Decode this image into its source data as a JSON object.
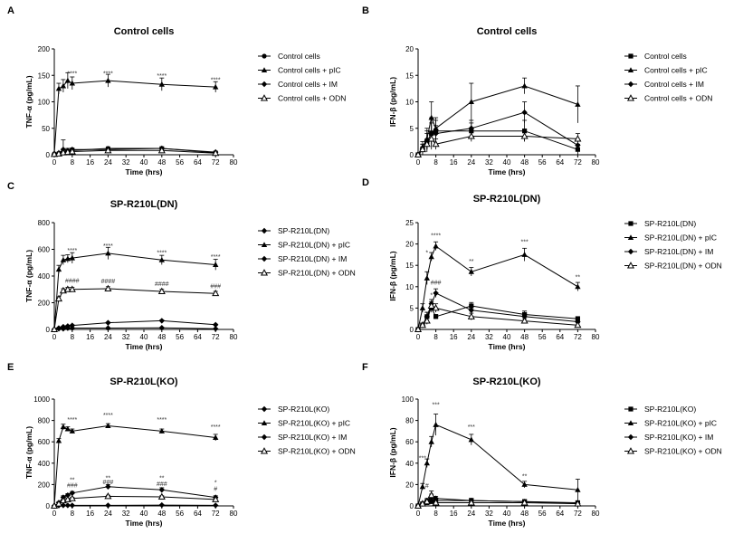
{
  "chart_data": [
    {
      "panel": "A",
      "title": "Control cells",
      "type": "line",
      "xlabel": "Time (hrs)",
      "ylabel": "TNF-α (pg/mL)",
      "xlim": [
        0,
        80
      ],
      "ylim": [
        0,
        200
      ],
      "xticks": [
        0,
        8,
        16,
        24,
        32,
        40,
        48,
        56,
        64,
        72,
        80
      ],
      "yticks": [
        0,
        50,
        100,
        150,
        200
      ],
      "series": [
        {
          "name": "Control cells",
          "marker": "circle",
          "x": [
            0,
            2,
            4,
            6,
            8,
            24,
            48,
            72
          ],
          "y": [
            2,
            3,
            4,
            6,
            8,
            12,
            12,
            4
          ],
          "err": [
            0,
            1,
            2,
            2,
            3,
            3,
            3,
            2
          ]
        },
        {
          "name": "Control cells + pIC",
          "marker": "triangle",
          "x": [
            0,
            2,
            4,
            6,
            8,
            24,
            48,
            72
          ],
          "y": [
            2,
            125,
            130,
            140,
            135,
            140,
            133,
            128
          ],
          "err": [
            0,
            10,
            12,
            15,
            12,
            12,
            12,
            10
          ]
        },
        {
          "name": "Control cells + IM",
          "marker": "diamond",
          "x": [
            0,
            2,
            4,
            6,
            8,
            24,
            48,
            72
          ],
          "y": [
            1,
            3,
            10,
            8,
            10,
            10,
            12,
            5
          ],
          "err": [
            0,
            2,
            18,
            4,
            3,
            3,
            3,
            2
          ]
        },
        {
          "name": "Control cells + ODN",
          "marker": "open-triangle",
          "x": [
            0,
            2,
            4,
            6,
            8,
            24,
            48,
            72
          ],
          "y": [
            1,
            2,
            4,
            5,
            6,
            8,
            8,
            3
          ],
          "err": [
            0,
            1,
            2,
            2,
            2,
            2,
            2,
            2
          ]
        }
      ],
      "annotations": [
        {
          "x": 8,
          "y": 150,
          "text": "****"
        },
        {
          "x": 24,
          "y": 150,
          "text": "****"
        },
        {
          "x": 48,
          "y": 145,
          "text": "****"
        },
        {
          "x": 72,
          "y": 138,
          "text": "****"
        }
      ]
    },
    {
      "panel": "B",
      "title": "Control cells",
      "type": "line",
      "xlabel": "Time (hrs)",
      "ylabel": "IFN-β (pg/mL)",
      "xlim": [
        0,
        80
      ],
      "ylim": [
        0,
        20
      ],
      "xticks": [
        0,
        8,
        16,
        24,
        32,
        40,
        48,
        56,
        64,
        72,
        80
      ],
      "yticks": [
        0,
        5,
        10,
        15,
        20
      ],
      "series": [
        {
          "name": "Control cells",
          "marker": "square",
          "x": [
            0,
            2,
            4,
            6,
            8,
            24,
            48,
            72
          ],
          "y": [
            0,
            1,
            2.5,
            4,
            4.5,
            4.5,
            4.5,
            1
          ],
          "err": [
            0,
            1,
            2,
            3,
            2,
            1.5,
            2,
            1
          ]
        },
        {
          "name": "Control cells + pIC",
          "marker": "triangle",
          "x": [
            0,
            2,
            4,
            6,
            8,
            24,
            48,
            72
          ],
          "y": [
            0,
            1.5,
            3,
            7,
            5,
            10,
            13,
            9.5
          ],
          "err": [
            0,
            1,
            2,
            3,
            2,
            3.5,
            1.5,
            3.5
          ]
        },
        {
          "name": "Control cells + IM",
          "marker": "diamond",
          "x": [
            0,
            2,
            4,
            6,
            8,
            24,
            48,
            72
          ],
          "y": [
            0,
            1,
            2.5,
            4,
            4,
            5,
            8,
            1.8
          ],
          "err": [
            0,
            1,
            1.5,
            2,
            1.5,
            1.5,
            2,
            1
          ]
        },
        {
          "name": "Control cells + ODN",
          "marker": "open-triangle",
          "x": [
            0,
            2,
            4,
            6,
            8,
            24,
            48,
            72
          ],
          "y": [
            0,
            1,
            2,
            3,
            2,
            3.5,
            3.5,
            3
          ],
          "err": [
            0,
            0.5,
            1,
            1.5,
            1,
            1,
            1,
            1
          ]
        }
      ]
    },
    {
      "panel": "C",
      "title": "SP-R210L(DN)",
      "type": "line",
      "xlabel": "Time (hrs)",
      "ylabel": "TNF-α (pg/mL)",
      "xlim": [
        0,
        80
      ],
      "ylim": [
        0,
        800
      ],
      "xticks": [
        0,
        8,
        16,
        24,
        32,
        40,
        48,
        56,
        64,
        72,
        80
      ],
      "yticks": [
        0,
        200,
        400,
        600,
        800
      ],
      "series": [
        {
          "name": "SP-R210L(DN)",
          "marker": "diamond",
          "x": [
            0,
            2,
            4,
            6,
            8,
            24,
            48,
            72
          ],
          "y": [
            0,
            5,
            5,
            10,
            10,
            10,
            12,
            5
          ],
          "err": [
            0,
            2,
            2,
            3,
            3,
            3,
            3,
            2
          ]
        },
        {
          "name": "SP-R210L(DN) + pIC",
          "marker": "triangle",
          "x": [
            0,
            2,
            4,
            6,
            8,
            24,
            48,
            72
          ],
          "y": [
            0,
            450,
            520,
            530,
            535,
            570,
            520,
            485
          ],
          "err": [
            0,
            30,
            35,
            30,
            40,
            45,
            35,
            40
          ]
        },
        {
          "name": "SP-R210L(DN) + IM",
          "marker": "diamond",
          "x": [
            0,
            2,
            4,
            6,
            8,
            24,
            48,
            72
          ],
          "y": [
            0,
            10,
            20,
            25,
            30,
            50,
            65,
            35
          ],
          "err": [
            0,
            3,
            4,
            5,
            5,
            5,
            6,
            5
          ]
        },
        {
          "name": "SP-R210L(DN) + ODN",
          "marker": "open-triangle",
          "x": [
            0,
            2,
            4,
            6,
            8,
            24,
            48,
            72
          ],
          "y": [
            0,
            230,
            290,
            300,
            300,
            305,
            285,
            270
          ],
          "err": [
            0,
            15,
            15,
            15,
            15,
            15,
            15,
            15
          ]
        }
      ],
      "annotations": [
        {
          "x": 8,
          "y": 575,
          "text": "****"
        },
        {
          "x": 24,
          "y": 610,
          "text": "****"
        },
        {
          "x": 48,
          "y": 560,
          "text": "****"
        },
        {
          "x": 72,
          "y": 530,
          "text": "****"
        },
        {
          "x": 8,
          "y": 350,
          "text": "####"
        },
        {
          "x": 24,
          "y": 345,
          "text": "####"
        },
        {
          "x": 48,
          "y": 325,
          "text": "####"
        },
        {
          "x": 72,
          "y": 310,
          "text": "###"
        }
      ]
    },
    {
      "panel": "D",
      "title": "SP-R210L(DN)",
      "type": "line",
      "xlabel": "Time (hrs)",
      "ylabel": "IFN-β (pg/mL)",
      "xlim": [
        0,
        80
      ],
      "ylim": [
        0,
        25
      ],
      "xticks": [
        0,
        8,
        16,
        24,
        32,
        40,
        48,
        56,
        64,
        72,
        80
      ],
      "yticks": [
        0,
        5,
        10,
        15,
        20,
        25
      ],
      "series": [
        {
          "name": "SP-R210L(DN)",
          "marker": "square",
          "x": [
            0,
            2,
            4,
            6,
            8,
            24,
            48,
            72
          ],
          "y": [
            0,
            1,
            3,
            5,
            3,
            5.5,
            3.5,
            2.5
          ],
          "err": [
            0,
            0.5,
            1,
            1,
            0.5,
            0.8,
            0.8,
            0.5
          ]
        },
        {
          "name": "SP-R210L(DN) + pIC",
          "marker": "triangle",
          "x": [
            0,
            2,
            4,
            6,
            8,
            24,
            48,
            72
          ],
          "y": [
            0,
            5,
            12,
            17,
            19.5,
            13.5,
            17.5,
            10
          ],
          "err": [
            0,
            1,
            1.5,
            1,
            1,
            1,
            1.5,
            1
          ]
        },
        {
          "name": "SP-R210L(DN) + IM",
          "marker": "diamond",
          "x": [
            0,
            2,
            4,
            6,
            8,
            24,
            48,
            72
          ],
          "y": [
            0,
            1,
            3,
            6,
            8.5,
            4.5,
            3,
            1.8
          ],
          "err": [
            0,
            0.5,
            1,
            1,
            1,
            0.8,
            0.6,
            0.5
          ]
        },
        {
          "name": "SP-R210L(DN) + ODN",
          "marker": "open-triangle",
          "x": [
            0,
            2,
            4,
            6,
            8,
            24,
            48,
            72
          ],
          "y": [
            0,
            1,
            2,
            5.5,
            5,
            3,
            2,
            1
          ],
          "err": [
            0,
            0.5,
            0.8,
            1,
            1,
            0.8,
            0.5,
            0.5
          ]
        }
      ],
      "annotations": [
        {
          "x": 4,
          "y": 17.5,
          "text": "*"
        },
        {
          "x": 8,
          "y": 21.5,
          "text": "****"
        },
        {
          "x": 24,
          "y": 15.5,
          "text": "**"
        },
        {
          "x": 48,
          "y": 20,
          "text": "***"
        },
        {
          "x": 72,
          "y": 11.8,
          "text": "**"
        },
        {
          "x": 8,
          "y": 10.5,
          "text": "###"
        },
        {
          "x": 6,
          "y": 7.5,
          "text": "*"
        }
      ]
    },
    {
      "panel": "E",
      "title": "SP-R210L(KO)",
      "type": "line",
      "xlabel": "Time (hrs)",
      "ylabel": "TNF-α (pg/mL)",
      "xlim": [
        0,
        80
      ],
      "ylim": [
        0,
        1000
      ],
      "xticks": [
        0,
        8,
        16,
        24,
        32,
        40,
        48,
        56,
        64,
        72,
        80
      ],
      "yticks": [
        0,
        200,
        400,
        600,
        800,
        1000
      ],
      "series": [
        {
          "name": "SP-R210L(KO)",
          "marker": "diamond",
          "x": [
            0,
            2,
            4,
            6,
            8,
            24,
            48,
            72
          ],
          "y": [
            0,
            3,
            5,
            5,
            5,
            5,
            8,
            5
          ],
          "err": [
            0,
            2,
            2,
            2,
            2,
            2,
            3,
            2
          ]
        },
        {
          "name": "SP-R210L(KO) + pIC",
          "marker": "triangle",
          "x": [
            0,
            2,
            4,
            6,
            8,
            24,
            48,
            72
          ],
          "y": [
            0,
            610,
            740,
            720,
            700,
            750,
            700,
            640
          ],
          "err": [
            0,
            20,
            25,
            20,
            20,
            20,
            20,
            30
          ]
        },
        {
          "name": "SP-R210L(KO) + IM",
          "marker": "diamond",
          "x": [
            0,
            2,
            4,
            6,
            8,
            24,
            48,
            72
          ],
          "y": [
            0,
            30,
            80,
            100,
            120,
            180,
            150,
            80
          ],
          "err": [
            0,
            10,
            15,
            15,
            15,
            20,
            20,
            15
          ]
        },
        {
          "name": "SP-R210L(KO) + ODN",
          "marker": "open-triangle",
          "x": [
            0,
            2,
            4,
            6,
            8,
            24,
            48,
            72
          ],
          "y": [
            0,
            20,
            50,
            60,
            70,
            90,
            85,
            60
          ],
          "err": [
            0,
            8,
            10,
            10,
            10,
            10,
            10,
            10
          ]
        }
      ],
      "annotations": [
        {
          "x": 8,
          "y": 790,
          "text": "****"
        },
        {
          "x": 24,
          "y": 830,
          "text": "****"
        },
        {
          "x": 48,
          "y": 790,
          "text": "****"
        },
        {
          "x": 72,
          "y": 720,
          "text": "****"
        },
        {
          "x": 8,
          "y": 225,
          "text": "**"
        },
        {
          "x": 24,
          "y": 240,
          "text": "**"
        },
        {
          "x": 48,
          "y": 240,
          "text": "**"
        },
        {
          "x": 72,
          "y": 200,
          "text": "*"
        },
        {
          "x": 8,
          "y": 175,
          "text": "###"
        },
        {
          "x": 24,
          "y": 205,
          "text": "###"
        },
        {
          "x": 48,
          "y": 185,
          "text": "###"
        },
        {
          "x": 72,
          "y": 140,
          "text": "#"
        }
      ]
    },
    {
      "panel": "F",
      "title": "SP-R210L(KO)",
      "type": "line",
      "xlabel": "Time (hrs)",
      "ylabel": "IFN-β (pg/mL)",
      "xlim": [
        0,
        80
      ],
      "ylim": [
        0,
        100
      ],
      "xticks": [
        0,
        8,
        16,
        24,
        32,
        40,
        48,
        56,
        64,
        72,
        80
      ],
      "yticks": [
        0,
        20,
        40,
        60,
        80,
        100
      ],
      "series": [
        {
          "name": "SP-R210L(KO)",
          "marker": "square",
          "x": [
            0,
            2,
            4,
            6,
            8,
            24,
            48,
            72
          ],
          "y": [
            0,
            2,
            3,
            4,
            5,
            5,
            4,
            3
          ],
          "err": [
            0,
            1,
            1,
            2,
            2,
            2,
            2,
            1
          ]
        },
        {
          "name": "SP-R210L(KO) + pIC",
          "marker": "triangle",
          "x": [
            0,
            2,
            4,
            6,
            8,
            24,
            48,
            72
          ],
          "y": [
            0,
            18,
            40,
            60,
            76,
            62,
            20,
            15
          ],
          "err": [
            0,
            3,
            4,
            5,
            10,
            5,
            3,
            10
          ]
        },
        {
          "name": "SP-R210L(KO) + IM",
          "marker": "diamond",
          "x": [
            0,
            2,
            4,
            6,
            8,
            24,
            48,
            72
          ],
          "y": [
            0,
            2,
            5,
            8,
            7,
            5,
            4,
            2
          ],
          "err": [
            0,
            1,
            2,
            3,
            2,
            2,
            2,
            1
          ]
        },
        {
          "name": "SP-R210L(KO) + ODN",
          "marker": "open-triangle",
          "x": [
            0,
            2,
            4,
            6,
            8,
            24,
            48,
            72
          ],
          "y": [
            0,
            2,
            4,
            10,
            3,
            3,
            3,
            2
          ],
          "err": [
            0,
            1,
            2,
            4,
            2,
            2,
            2,
            1
          ]
        }
      ],
      "annotations": [
        {
          "x": 2,
          "y": 43,
          "text": "***"
        },
        {
          "x": 8,
          "y": 93,
          "text": "***"
        },
        {
          "x": 24,
          "y": 72,
          "text": "***"
        },
        {
          "x": 48,
          "y": 26,
          "text": "**"
        },
        {
          "x": 4,
          "y": 17,
          "text": "#"
        }
      ]
    }
  ]
}
